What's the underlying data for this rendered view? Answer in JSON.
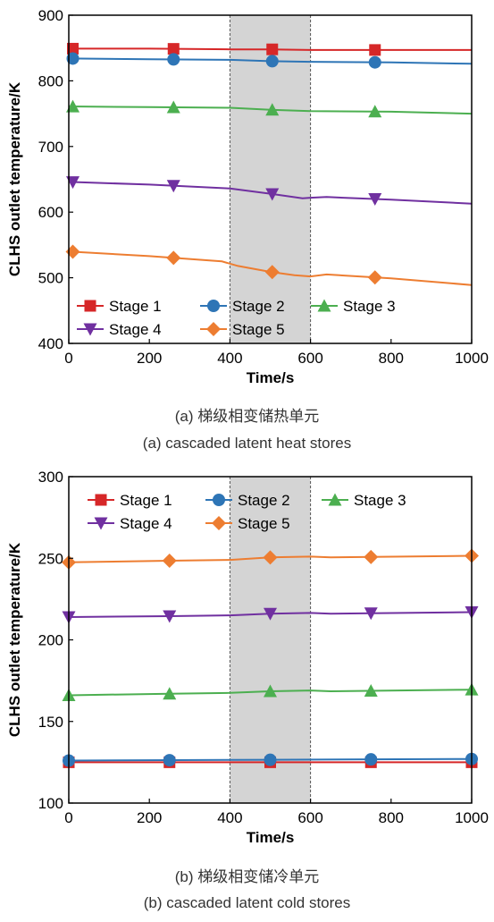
{
  "charts": [
    {
      "caption_cn": "(a) 梯级相变储热单元",
      "caption_en": "(a) cascaded latent heat stores"
    },
    {
      "caption_cn": "(b) 梯级相变储冷单元",
      "caption_en": "(b) cascaded latent cold stores"
    }
  ],
  "chart_data": [
    {
      "type": "line",
      "xlabel": "Time/s",
      "ylabel": "CLHS outlet temperature/K",
      "xlim": [
        0,
        1000
      ],
      "ylim": [
        400,
        900
      ],
      "xticks": [
        0,
        200,
        400,
        600,
        800,
        1000
      ],
      "yticks": [
        400,
        500,
        600,
        700,
        800,
        900
      ],
      "shaded_region": [
        400,
        600
      ],
      "grid": false,
      "legend_placement": "bottom-left, inside",
      "series": [
        {
          "name": "Stage 1",
          "color": "#d62728",
          "marker": "square",
          "x": [
            0,
            200,
            400,
            500,
            600,
            800,
            1000
          ],
          "y": [
            849,
            849,
            848,
            848,
            847,
            847,
            847
          ],
          "marker_x": [
            10,
            260,
            505,
            760
          ]
        },
        {
          "name": "Stage 2",
          "color": "#2e75b6",
          "marker": "circle",
          "x": [
            0,
            200,
            400,
            500,
            600,
            800,
            1000
          ],
          "y": [
            834,
            833,
            832,
            830,
            829,
            828,
            826
          ],
          "marker_x": [
            10,
            260,
            505,
            760
          ]
        },
        {
          "name": "Stage 3",
          "color": "#4caf50",
          "marker": "triangle-up",
          "x": [
            0,
            200,
            400,
            500,
            600,
            800,
            1000
          ],
          "y": [
            761,
            760,
            759,
            756,
            754,
            753,
            750
          ],
          "marker_x": [
            10,
            260,
            505,
            760
          ]
        },
        {
          "name": "Stage 4",
          "color": "#7030a0",
          "marker": "triangle-down",
          "x": [
            0,
            200,
            400,
            500,
            580,
            600,
            640,
            800,
            1000
          ],
          "y": [
            646,
            642,
            636,
            628,
            621,
            622,
            623,
            619,
            613
          ],
          "marker_x": [
            10,
            260,
            505,
            760
          ]
        },
        {
          "name": "Stage 5",
          "color": "#ed7d31",
          "marker": "diamond",
          "x": [
            0,
            200,
            380,
            420,
            500,
            560,
            600,
            640,
            800,
            1000
          ],
          "y": [
            540,
            533,
            525,
            518,
            509,
            504,
            502,
            505,
            499,
            489
          ],
          "marker_x": [
            10,
            260,
            505,
            760
          ]
        }
      ]
    },
    {
      "type": "line",
      "xlabel": "Time/s",
      "ylabel": "CLHS outlet temperature/K",
      "xlim": [
        0,
        1000
      ],
      "ylim": [
        100,
        300
      ],
      "xticks": [
        0,
        200,
        400,
        600,
        800,
        1000
      ],
      "yticks": [
        100,
        150,
        200,
        250,
        300
      ],
      "shaded_region": [
        400,
        600
      ],
      "grid": false,
      "legend_placement": "top-left, inside",
      "series": [
        {
          "name": "Stage 1",
          "color": "#d62728",
          "marker": "square",
          "x": [
            0,
            1000
          ],
          "y": [
            125,
            125
          ],
          "marker_x": [
            0,
            250,
            500,
            750,
            1000
          ]
        },
        {
          "name": "Stage 2",
          "color": "#2e75b6",
          "marker": "circle",
          "x": [
            0,
            500,
            1000
          ],
          "y": [
            126,
            126.5,
            127
          ],
          "marker_x": [
            0,
            250,
            500,
            750,
            1000
          ]
        },
        {
          "name": "Stage 3",
          "color": "#4caf50",
          "marker": "triangle-up",
          "x": [
            0,
            250,
            400,
            500,
            600,
            650,
            1000
          ],
          "y": [
            166,
            167,
            167.5,
            168.5,
            169,
            168.5,
            169.5
          ],
          "marker_x": [
            0,
            250,
            500,
            750,
            1000
          ]
        },
        {
          "name": "Stage 4",
          "color": "#7030a0",
          "marker": "triangle-down",
          "x": [
            0,
            250,
            400,
            500,
            600,
            650,
            1000
          ],
          "y": [
            214,
            214.5,
            215,
            216,
            216.5,
            216,
            217
          ],
          "marker_x": [
            0,
            250,
            500,
            750,
            1000
          ]
        },
        {
          "name": "Stage 5",
          "color": "#ed7d31",
          "marker": "diamond",
          "x": [
            0,
            250,
            400,
            500,
            600,
            650,
            1000
          ],
          "y": [
            247.5,
            248.5,
            249,
            250.5,
            251,
            250.5,
            251.5
          ],
          "marker_x": [
            0,
            250,
            500,
            750,
            1000
          ]
        }
      ]
    }
  ]
}
